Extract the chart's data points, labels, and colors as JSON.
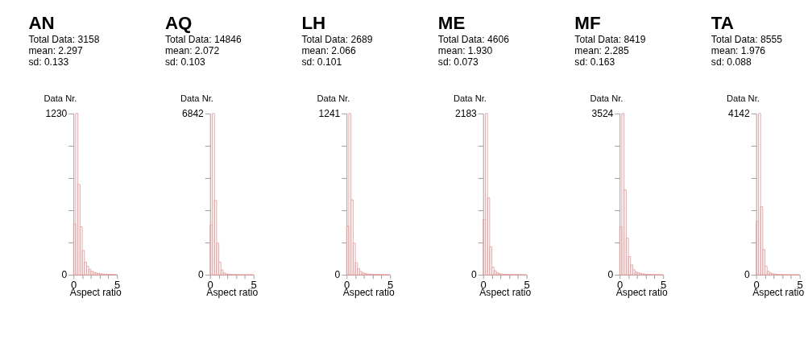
{
  "chart_data": [
    {
      "type": "histogram",
      "title": "AN",
      "annotations": [
        "Total Data: 3158",
        "mean: 2.297",
        "sd: 0.133"
      ],
      "xlabel": "Aspect ratio",
      "ylabel": "Data Nr.",
      "color": "#e8a0a0",
      "grid": false,
      "bins": [
        0,
        0.25,
        0.5,
        0.75,
        1,
        1.25,
        1.5,
        1.75,
        2,
        2.25,
        2.5,
        2.75,
        3,
        3.25,
        3.5,
        3.75,
        4,
        4.25,
        4.5,
        4.75,
        5
      ],
      "values": [
        387,
        1230,
        689,
        366,
        186,
        95,
        64,
        42,
        27,
        18,
        14,
        10,
        8,
        6,
        5,
        4,
        3,
        3,
        2,
        1
      ],
      "xlim": [
        0,
        5
      ],
      "xticks": [
        0,
        {
          "value": 1,
          "label": null
        },
        {
          "value": 2,
          "label": null
        },
        {
          "value": 3,
          "label": null
        },
        {
          "value": 4,
          "label": null
        },
        5
      ],
      "ylim": [
        0,
        1230
      ],
      "yticks": [
        0,
        {
          "value": 246,
          "label": null
        },
        {
          "value": 492,
          "label": null
        },
        {
          "value": 738,
          "label": null
        },
        {
          "value": 984,
          "label": null
        },
        1230
      ]
    },
    {
      "type": "histogram",
      "title": "AQ",
      "annotations": [
        "Total Data: 14846",
        "mean: 2.072",
        "sd: 0.103"
      ],
      "xlabel": "Aspect ratio",
      "ylabel": "Data Nr.",
      "color": "#e8a0a0",
      "grid": false,
      "bins": [
        0,
        0.25,
        0.5,
        0.75,
        1,
        1.25,
        1.5,
        1.75,
        2,
        2.25,
        2.5,
        2.75,
        3,
        3.25,
        3.5,
        3.75,
        4,
        4.25,
        4.5,
        4.75,
        5
      ],
      "values": [
        2115,
        6842,
        3151,
        1342,
        529,
        203,
        81,
        40,
        25,
        15,
        10,
        8,
        6,
        5,
        4,
        3,
        3,
        2,
        1,
        1
      ],
      "xlim": [
        0,
        5
      ],
      "xticks": [
        0,
        {
          "value": 1,
          "label": null
        },
        {
          "value": 2,
          "label": null
        },
        {
          "value": 3,
          "label": null
        },
        {
          "value": 4,
          "label": null
        },
        5
      ],
      "ylim": [
        0,
        6842
      ],
      "yticks": [
        0,
        {
          "value": 1368.4,
          "label": null
        },
        {
          "value": 2736.8,
          "label": null
        },
        {
          "value": 4105.2,
          "label": null
        },
        {
          "value": 5473.6,
          "label": null
        },
        6842
      ]
    },
    {
      "type": "histogram",
      "title": "LH",
      "annotations": [
        "Total Data: 2689",
        "mean: 2.066",
        "sd: 0.101"
      ],
      "xlabel": "Aspect ratio",
      "ylabel": "Data Nr.",
      "color": "#e8a0a0",
      "grid": false,
      "bins": [
        0,
        0.25,
        0.5,
        0.75,
        1,
        1.25,
        1.5,
        1.75,
        2,
        2.25,
        2.5,
        2.75,
        3,
        3.25,
        3.5,
        3.75,
        4,
        4.25,
        4.5,
        4.75,
        5
      ],
      "values": [
        375,
        1241,
        577,
        243,
        92,
        46,
        26,
        15,
        10,
        7,
        5,
        4,
        3,
        3,
        2,
        2,
        1,
        1,
        1,
        0
      ],
      "xlim": [
        0,
        5
      ],
      "xticks": [
        0,
        {
          "value": 1,
          "label": null
        },
        {
          "value": 2,
          "label": null
        },
        {
          "value": 3,
          "label": null
        },
        {
          "value": 4,
          "label": null
        },
        5
      ],
      "ylim": [
        0,
        1241
      ],
      "yticks": [
        0,
        {
          "value": 248.2,
          "label": null
        },
        {
          "value": 496.4,
          "label": null
        },
        {
          "value": 744.6,
          "label": null
        },
        {
          "value": 992.8,
          "label": null
        },
        1241
      ]
    },
    {
      "type": "histogram",
      "title": "ME",
      "annotations": [
        "Total Data: 4606",
        "mean: 1.930",
        "sd: 0.073"
      ],
      "xlabel": "Aspect ratio",
      "ylabel": "Data Nr.",
      "color": "#e8a0a0",
      "grid": false,
      "bins": [
        0,
        0.25,
        0.5,
        0.75,
        1,
        1.25,
        1.5,
        1.75,
        2,
        2.25,
        2.5,
        2.75,
        3,
        3.25,
        3.5,
        3.75,
        4,
        4.25,
        4.5,
        4.75,
        5
      ],
      "values": [
        750,
        2183,
        1041,
        378,
        103,
        55,
        26,
        16,
        10,
        8,
        6,
        5,
        4,
        3,
        3,
        2,
        2,
        1,
        1,
        0
      ],
      "xlim": [
        0,
        5
      ],
      "xticks": [
        0,
        {
          "value": 1,
          "label": null
        },
        {
          "value": 2,
          "label": null
        },
        {
          "value": 3,
          "label": null
        },
        {
          "value": 4,
          "label": null
        },
        5
      ],
      "ylim": [
        0,
        2183
      ],
      "yticks": [
        0,
        {
          "value": 436.6,
          "label": null
        },
        {
          "value": 873.2,
          "label": null
        },
        {
          "value": 1309.8,
          "label": null
        },
        {
          "value": 1746.4,
          "label": null
        },
        2183
      ]
    },
    {
      "type": "histogram",
      "title": "MF",
      "annotations": [
        "Total Data: 8419",
        "mean: 2.285",
        "sd: 0.163"
      ],
      "xlabel": "Aspect ratio",
      "ylabel": "Data Nr.",
      "color": "#e8a0a0",
      "grid": false,
      "bins": [
        0,
        0.25,
        0.5,
        0.75,
        1,
        1.25,
        1.5,
        1.75,
        2,
        2.25,
        2.5,
        2.75,
        3,
        3.25,
        3.5,
        3.75,
        4,
        4.25,
        4.5,
        4.75,
        5
      ],
      "values": [
        1047,
        3524,
        1858,
        800,
        397,
        214,
        110,
        63,
        45,
        30,
        22,
        16,
        12,
        9,
        7,
        5,
        4,
        3,
        2,
        1
      ],
      "xlim": [
        0,
        5
      ],
      "xticks": [
        0,
        {
          "value": 1,
          "label": null
        },
        {
          "value": 2,
          "label": null
        },
        {
          "value": 3,
          "label": null
        },
        {
          "value": 4,
          "label": null
        },
        5
      ],
      "ylim": [
        0,
        3524
      ],
      "yticks": [
        0,
        {
          "value": 704.8,
          "label": null
        },
        {
          "value": 1409.6,
          "label": null
        },
        {
          "value": 2114.4,
          "label": null
        },
        {
          "value": 2819.2,
          "label": null
        },
        3524
      ]
    },
    {
      "type": "histogram",
      "title": "TA",
      "annotations": [
        "Total Data: 8555",
        "mean: 1.976",
        "sd: 0.088"
      ],
      "xlabel": "Aspect ratio",
      "ylabel": "Data Nr.",
      "color": "#e8a0a0",
      "grid": false,
      "bins": [
        0,
        0.25,
        0.5,
        0.75,
        1,
        1.25,
        1.5,
        1.75,
        2,
        2.25,
        2.5,
        2.75,
        3,
        3.25,
        3.5,
        3.75,
        4,
        4.25,
        4.5,
        4.75,
        5
      ],
      "values": [
        1366,
        4142,
        1753,
        645,
        215,
        92,
        49,
        30,
        18,
        12,
        9,
        7,
        5,
        4,
        3,
        2,
        2,
        1,
        1,
        0
      ],
      "xlim": [
        0,
        5
      ],
      "xticks": [
        0,
        {
          "value": 1,
          "label": null
        },
        {
          "value": 2,
          "label": null
        },
        {
          "value": 3,
          "label": null
        },
        {
          "value": 4,
          "label": null
        },
        5
      ],
      "ylim": [
        0,
        4142
      ],
      "yticks": [
        0,
        {
          "value": 828.4,
          "label": null
        },
        {
          "value": 1656.8,
          "label": null
        },
        {
          "value": 2485.2,
          "label": null
        },
        {
          "value": 3313.6,
          "label": null
        },
        4142
      ]
    }
  ]
}
